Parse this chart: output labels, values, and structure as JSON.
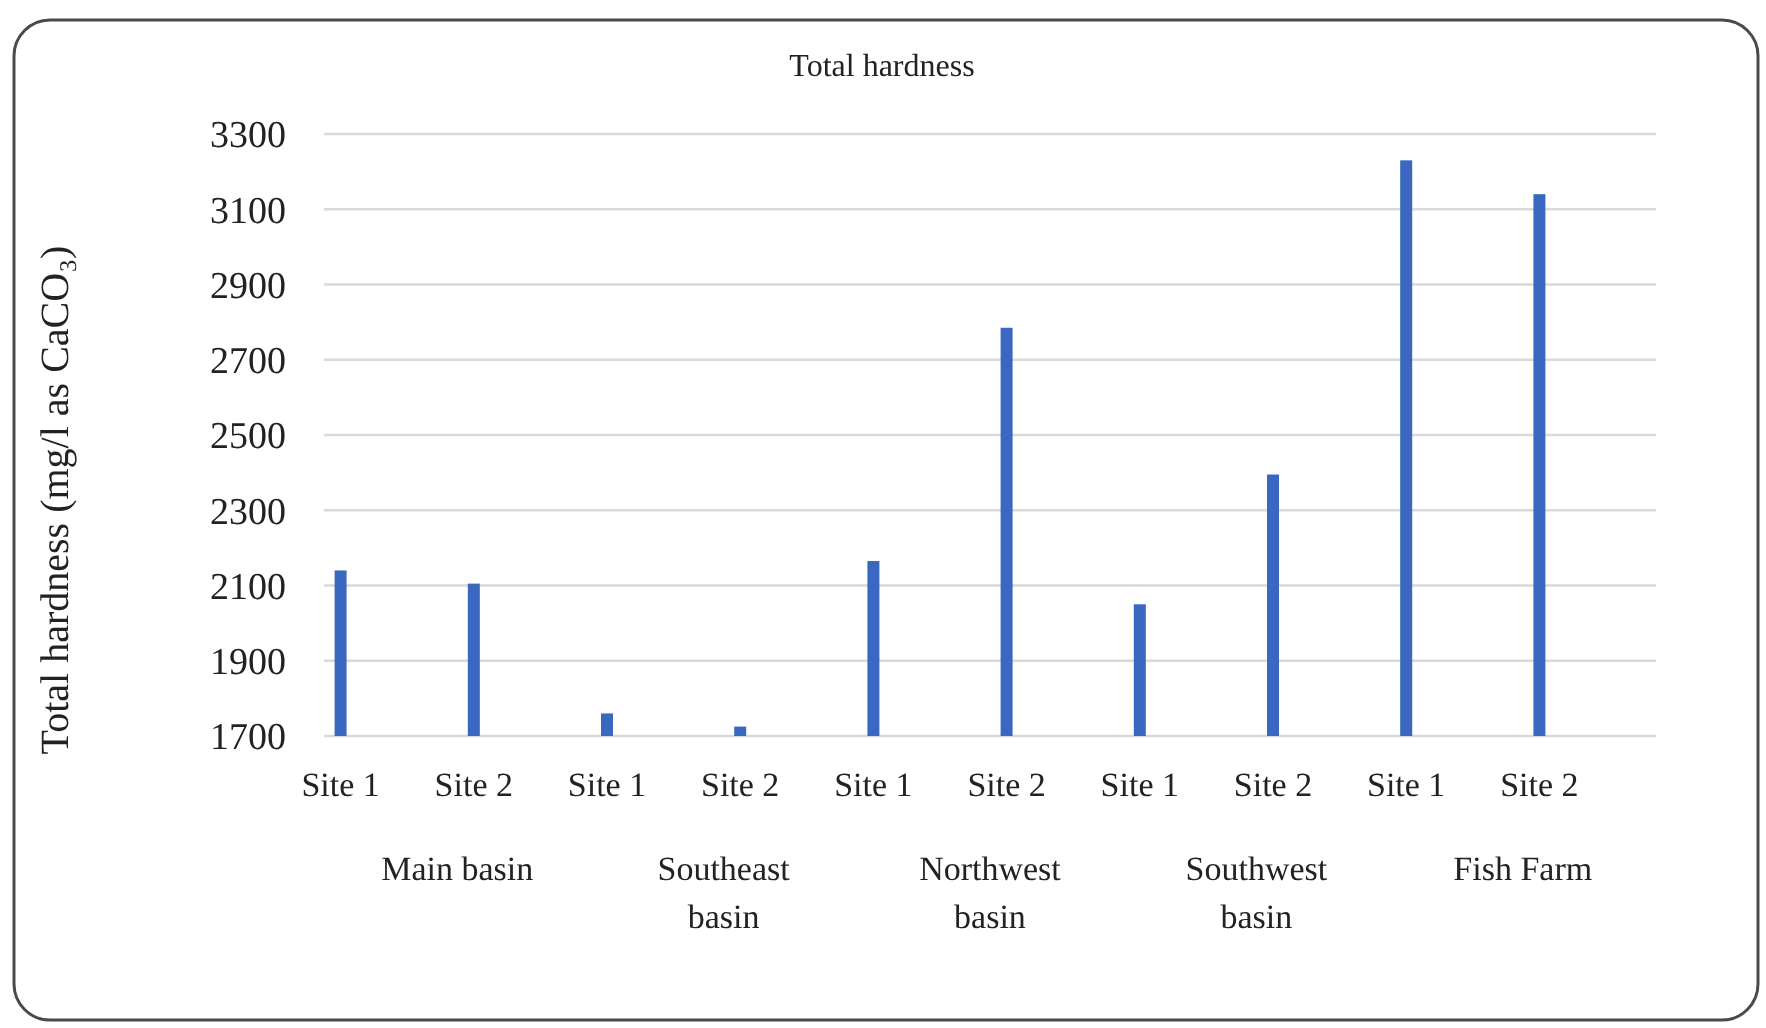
{
  "chart_data": {
    "type": "bar",
    "title": "Total hardness",
    "ylabel": "Total hardness (mg/l as CaCO₃)",
    "categories": [
      "Site 1",
      "Site 2",
      "Site 1",
      "Site 2",
      "Site 1",
      "Site 2",
      "Site 1",
      "Site 2",
      "Site 1",
      "Site 2"
    ],
    "values": [
      2140,
      2105,
      1760,
      1725,
      2165,
      2785,
      2050,
      2395,
      3230,
      3140
    ],
    "color": "#3a67c0",
    "ylim": [
      1700,
      3300
    ],
    "yticks": [
      1700,
      1900,
      2100,
      2300,
      2500,
      2700,
      2900,
      3100,
      3300
    ],
    "grid": "y",
    "annotations": [
      "Main basin",
      "Southeast basin",
      "Northwest basin",
      "Southwest basin",
      "Fish Farm"
    ]
  }
}
